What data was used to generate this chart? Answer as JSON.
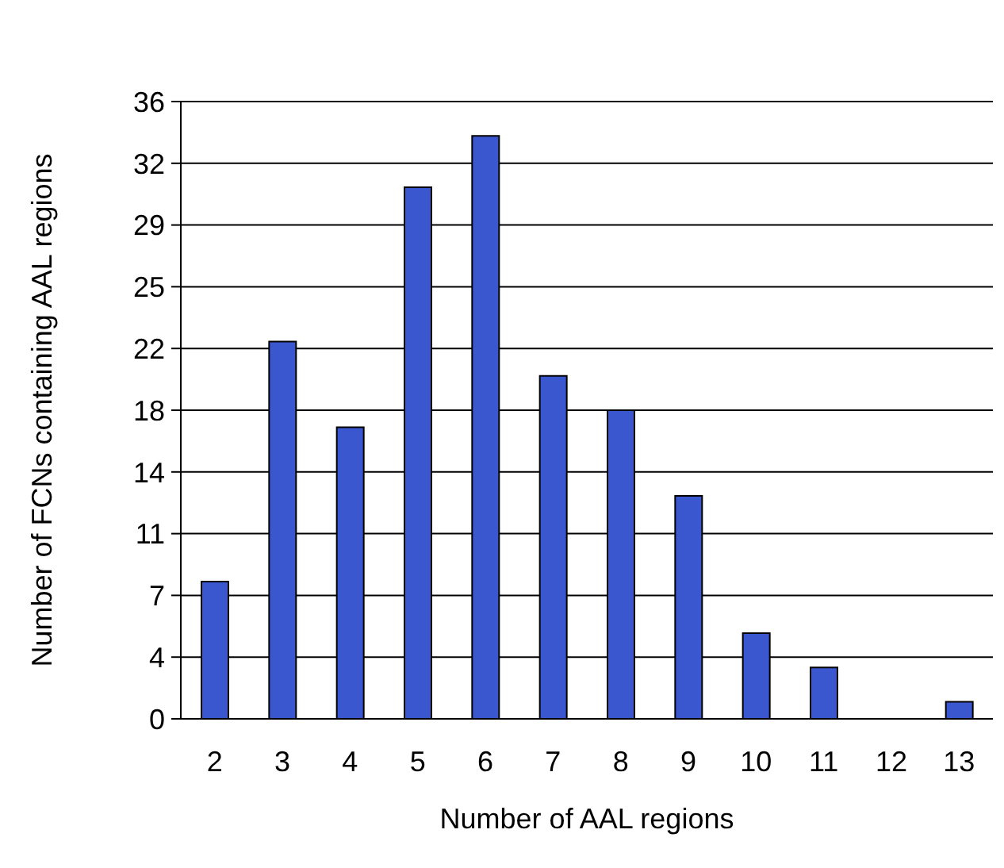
{
  "chart_data": {
    "type": "bar",
    "xlabel": "Number of AAL regions",
    "ylabel": "Number of FCNs containing AAL regions",
    "categories": [
      "2",
      "3",
      "4",
      "5",
      "6",
      "7",
      "8",
      "9",
      "10",
      "11",
      "12",
      "13"
    ],
    "values": [
      8,
      22,
      17,
      31,
      34,
      20,
      18,
      13,
      5,
      3,
      0,
      1
    ],
    "color": "#3a57d0",
    "ylim": [
      0,
      36
    ],
    "yticks": [
      0,
      {
        "value": 3.6,
        "label": "4"
      },
      {
        "value": 7.2,
        "label": "7"
      },
      {
        "value": 10.8,
        "label": "11"
      },
      {
        "value": 14.4,
        "label": "14"
      },
      {
        "value": 18,
        "label": "18"
      },
      {
        "value": 21.6,
        "label": "22"
      },
      {
        "value": 25.2,
        "label": "25"
      },
      {
        "value": 28.8,
        "label": "29"
      },
      {
        "value": 32.4,
        "label": "32"
      },
      36
    ],
    "grid": "y"
  }
}
